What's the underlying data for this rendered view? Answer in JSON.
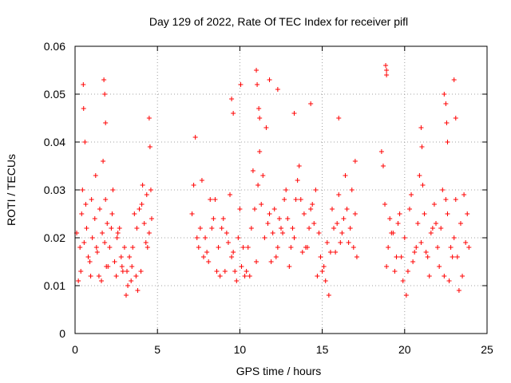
{
  "chart_data": {
    "type": "scatter",
    "title": "Day 129 of 2022, Rate Of TEC Index for receiver pifl",
    "xlabel": "GPS time / hours",
    "ylabel": "ROTI / TECUs",
    "xlim": [
      0,
      25
    ],
    "ylim": [
      0,
      0.06
    ],
    "x_ticks": [
      0,
      5,
      10,
      15,
      20,
      25
    ],
    "x_tick_labels": [
      "0",
      "5",
      "10",
      "15",
      "20",
      "25"
    ],
    "y_ticks": [
      0,
      0.01,
      0.02,
      0.03,
      0.04,
      0.05,
      0.06
    ],
    "y_tick_labels": [
      "0",
      "0.01",
      "0.02",
      "0.03",
      "0.04",
      "0.05",
      "0.06"
    ],
    "grid": true,
    "marker": "plus",
    "series_color": "#ff0000",
    "series": [
      {
        "name": "ROTI",
        "x": [
          0.1,
          0.3,
          0.4,
          0.55,
          0.7,
          0.9,
          1.05,
          1.2,
          1.35,
          1.5,
          1.65,
          1.8,
          1.95,
          2.1,
          2.25,
          2.4,
          2.55,
          2.7,
          2.85,
          3.0,
          3.15,
          3.3,
          3.45,
          3.6,
          3.75,
          3.9,
          4.05,
          4.2,
          4.35,
          4.5,
          4.65,
          0.2,
          0.45,
          0.6,
          0.8,
          1.0,
          1.25,
          1.45,
          1.7,
          1.85,
          2.0,
          2.3,
          2.6,
          2.9,
          3.2,
          3.5,
          3.8,
          4.1,
          4.4,
          4.6,
          0.35,
          0.65,
          0.95,
          1.3,
          1.6,
          1.9,
          2.2,
          2.5,
          2.8,
          3.1,
          3.4,
          3.7,
          4.0,
          4.3,
          0.5,
          0.52,
          1.75,
          1.8,
          1.85,
          4.5,
          4.55,
          7.1,
          7.3,
          7.5,
          7.7,
          7.9,
          8.1,
          8.3,
          8.5,
          8.7,
          8.9,
          9.1,
          9.3,
          9.5,
          9.7,
          9.9,
          10.1,
          10.3,
          10.5,
          10.7,
          10.9,
          11.1,
          11.3,
          11.5,
          11.7,
          11.9,
          12.1,
          12.3,
          12.5,
          12.7,
          12.9,
          13.1,
          13.3,
          13.5,
          13.7,
          13.9,
          14.1,
          14.3,
          14.5,
          14.7,
          14.9,
          15.1,
          15.3,
          15.5,
          15.7,
          15.9,
          16.1,
          16.3,
          16.5,
          16.7,
          16.9,
          17.1,
          7.2,
          7.6,
          8.0,
          8.4,
          8.8,
          9.2,
          9.6,
          10.0,
          10.4,
          10.8,
          11.2,
          11.6,
          12.0,
          12.4,
          12.8,
          13.2,
          13.6,
          14.0,
          14.4,
          14.8,
          15.2,
          15.6,
          16.0,
          16.4,
          16.8,
          7.4,
          7.8,
          8.2,
          8.6,
          9.0,
          9.4,
          9.8,
          10.2,
          10.6,
          11.0,
          11.4,
          11.8,
          12.2,
          12.6,
          13.0,
          13.4,
          13.8,
          14.2,
          14.6,
          15.0,
          15.4,
          15.8,
          16.2,
          16.6,
          17.0,
          9.5,
          9.6,
          10.05,
          11.0,
          11.05,
          11.15,
          11.2,
          11.8,
          12.3,
          13.3,
          14.3,
          16.0,
          17.0,
          18.9,
          18.6,
          18.8,
          19.0,
          19.2,
          19.4,
          19.6,
          19.8,
          20.0,
          20.2,
          20.4,
          20.6,
          20.8,
          21.0,
          21.2,
          21.4,
          21.6,
          21.8,
          22.0,
          22.2,
          22.4,
          22.6,
          22.8,
          23.0,
          23.2,
          23.4,
          23.6,
          23.8,
          18.7,
          19.1,
          19.5,
          19.9,
          20.3,
          20.7,
          21.1,
          21.5,
          21.9,
          22.3,
          22.7,
          23.1,
          23.5,
          23.9,
          18.9,
          19.3,
          19.7,
          20.1,
          20.5,
          20.9,
          21.3,
          21.7,
          22.1,
          22.5,
          22.9,
          23.3,
          23.7,
          18.85,
          18.9,
          21.0,
          21.05,
          22.4,
          22.5,
          22.55,
          22.6,
          23.0,
          23.1
        ],
        "y": [
          0.021,
          0.018,
          0.025,
          0.019,
          0.022,
          0.015,
          0.02,
          0.024,
          0.017,
          0.026,
          0.021,
          0.019,
          0.023,
          0.018,
          0.025,
          0.015,
          0.02,
          0.022,
          0.014,
          0.018,
          0.013,
          0.016,
          0.014,
          0.025,
          0.022,
          0.026,
          0.027,
          0.023,
          0.029,
          0.021,
          0.024,
          0.011,
          0.03,
          0.04,
          0.016,
          0.028,
          0.033,
          0.012,
          0.036,
          0.028,
          0.014,
          0.03,
          0.021,
          0.013,
          0.01,
          0.018,
          0.009,
          0.031,
          0.018,
          0.03,
          0.013,
          0.027,
          0.012,
          0.018,
          0.011,
          0.014,
          0.022,
          0.012,
          0.016,
          0.008,
          0.011,
          0.012,
          0.013,
          0.019,
          0.052,
          0.047,
          0.053,
          0.05,
          0.044,
          0.045,
          0.039,
          0.025,
          0.041,
          0.018,
          0.032,
          0.02,
          0.015,
          0.022,
          0.028,
          0.018,
          0.022,
          0.013,
          0.019,
          0.016,
          0.013,
          0.02,
          0.014,
          0.012,
          0.018,
          0.022,
          0.026,
          0.031,
          0.027,
          0.02,
          0.023,
          0.015,
          0.026,
          0.018,
          0.022,
          0.028,
          0.024,
          0.018,
          0.02,
          0.032,
          0.028,
          0.025,
          0.018,
          0.026,
          0.023,
          0.012,
          0.016,
          0.014,
          0.019,
          0.017,
          0.022,
          0.023,
          0.019,
          0.024,
          0.026,
          0.022,
          0.018,
          0.016,
          0.031,
          0.022,
          0.017,
          0.024,
          0.012,
          0.021,
          0.017,
          0.026,
          0.013,
          0.034,
          0.038,
          0.043,
          0.021,
          0.024,
          0.03,
          0.022,
          0.035,
          0.018,
          0.027,
          0.021,
          0.011,
          0.026,
          0.029,
          0.033,
          0.03,
          0.02,
          0.016,
          0.028,
          0.013,
          0.024,
          0.029,
          0.011,
          0.018,
          0.012,
          0.015,
          0.033,
          0.025,
          0.016,
          0.021,
          0.014,
          0.028,
          0.017,
          0.022,
          0.03,
          0.013,
          0.008,
          0.017,
          0.021,
          0.019,
          0.025,
          0.049,
          0.046,
          0.052,
          0.055,
          0.052,
          0.047,
          0.045,
          0.053,
          0.051,
          0.046,
          0.048,
          0.045,
          0.036,
          0.055,
          0.038,
          0.027,
          0.018,
          0.021,
          0.013,
          0.023,
          0.016,
          0.02,
          0.013,
          0.029,
          0.017,
          0.023,
          0.019,
          0.025,
          0.016,
          0.021,
          0.027,
          0.018,
          0.022,
          0.012,
          0.025,
          0.018,
          0.02,
          0.016,
          0.023,
          0.029,
          0.025,
          0.035,
          0.024,
          0.016,
          0.011,
          0.026,
          0.018,
          0.031,
          0.012,
          0.023,
          0.03,
          0.011,
          0.028,
          0.012,
          0.018,
          0.014,
          0.021,
          0.025,
          0.008,
          0.015,
          0.033,
          0.017,
          0.022,
          0.014,
          0.028,
          0.016,
          0.009,
          0.019,
          0.056,
          0.054,
          0.043,
          0.039,
          0.05,
          0.048,
          0.044,
          0.04,
          0.053,
          0.045
        ]
      }
    ]
  }
}
